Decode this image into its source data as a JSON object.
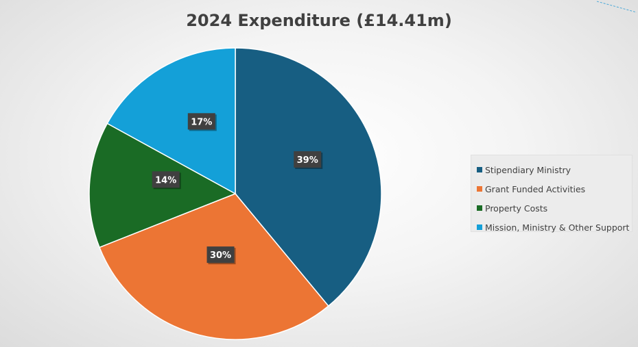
{
  "chart_data": {
    "type": "pie",
    "title": "2024 Expenditure (£14.41m)",
    "legend_position": "right",
    "slices": [
      {
        "name": "Stipendiary Ministry",
        "value": 39,
        "label": "39%",
        "color": "#175E82"
      },
      {
        "name": "Grant Funded Activities",
        "value": 30,
        "label": "30%",
        "color": "#EC7534"
      },
      {
        "name": "Property Costs",
        "value": 14,
        "label": "14%",
        "color": "#1A6B25"
      },
      {
        "name": "Mission, Ministry & Other Support",
        "value": 17,
        "label": "17%",
        "color": "#14A0D8"
      }
    ]
  }
}
